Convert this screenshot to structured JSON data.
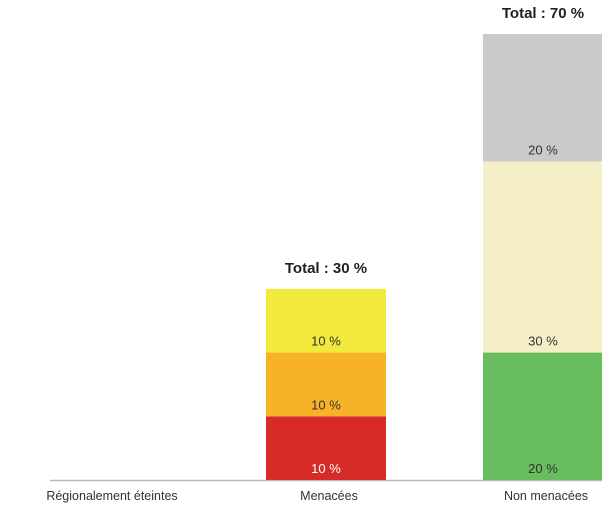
{
  "chart_data": {
    "type": "bar",
    "stacked": true,
    "categories": [
      "Régionalement éteintes",
      "Menacées",
      "Non menacées"
    ],
    "ylim": [
      0,
      70
    ],
    "stacks": [
      {
        "category": "Régionalement éteintes",
        "total_label": "",
        "segments": []
      },
      {
        "category": "Menacées",
        "total_label": "Total : 30 %",
        "segments": [
          {
            "value": 10,
            "label": "10 %",
            "color": "#d72b27"
          },
          {
            "value": 10,
            "label": "10 %",
            "color": "#f8b227"
          },
          {
            "value": 10,
            "label": "10 %",
            "color": "#f1ea3c"
          }
        ]
      },
      {
        "category": "Non menacées",
        "total_label": "Total : 70 %",
        "segments": [
          {
            "value": 20,
            "label": "20 %",
            "color": "#68bd5e"
          },
          {
            "value": 30,
            "label": "30 %",
            "color": "#f4efc6"
          },
          {
            "value": 20,
            "label": "20 %",
            "color": "#c9cacb"
          }
        ]
      }
    ],
    "baseline_color": "#b7b7b7"
  }
}
